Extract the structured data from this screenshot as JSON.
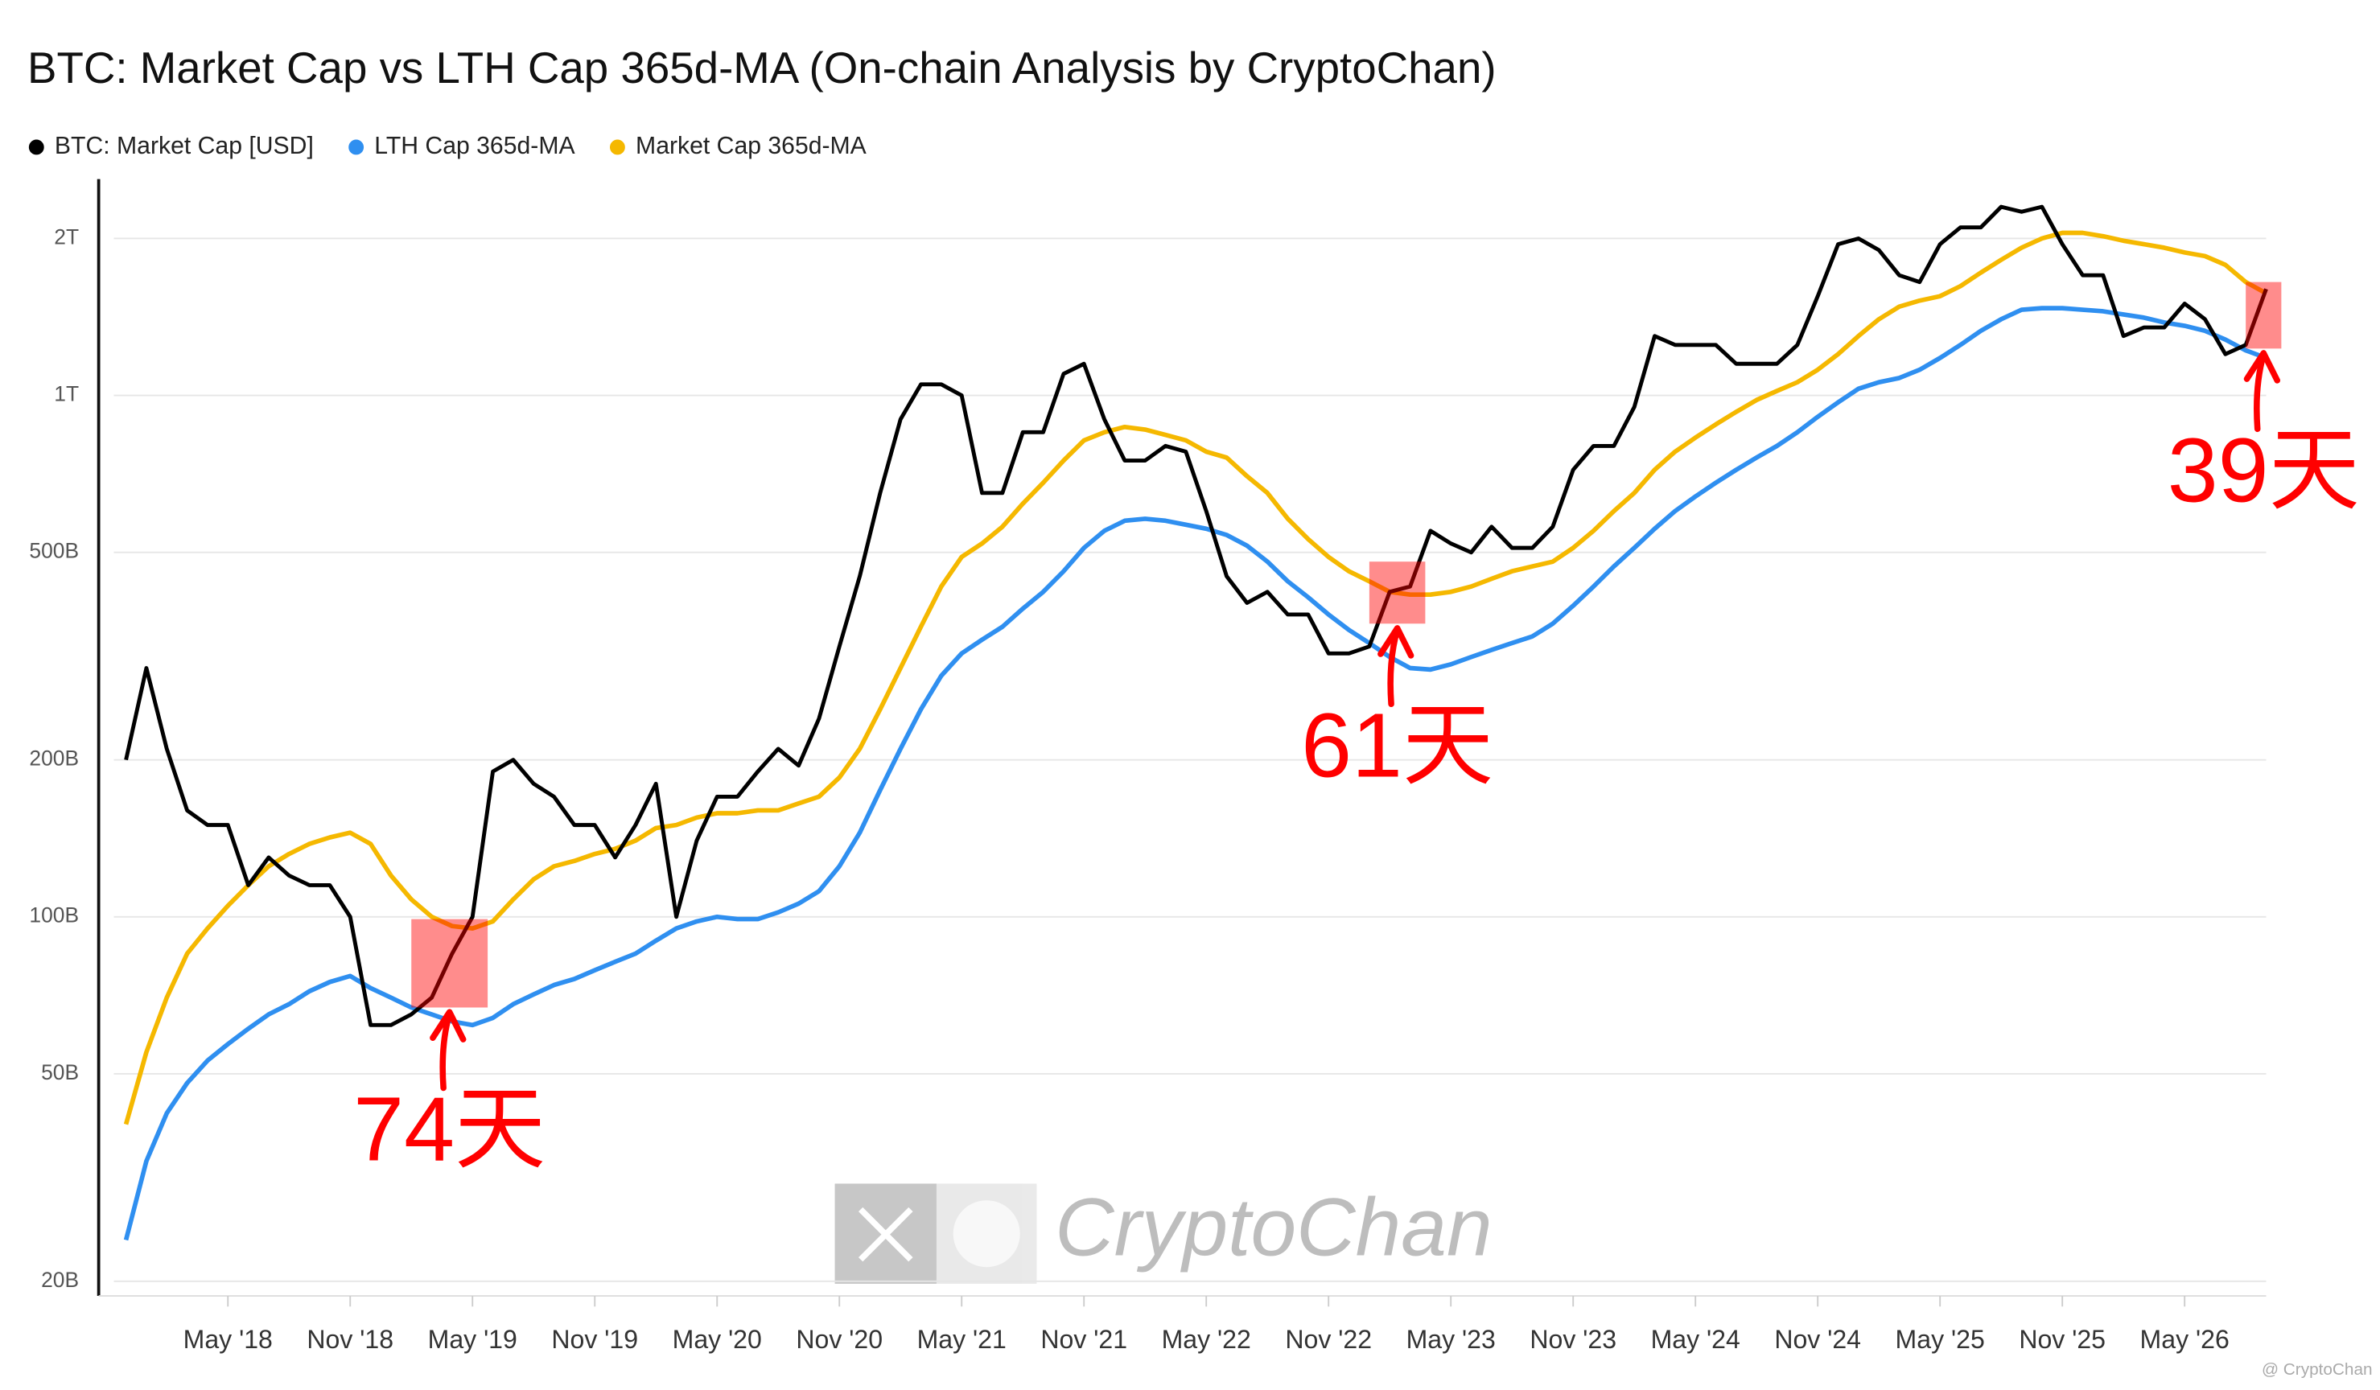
{
  "chart_data": {
    "type": "line",
    "title": "BTC: Market Cap vs LTH Cap 365d-MA (On-chain Analysis by CryptoChan)",
    "log_scale": true,
    "grid": true,
    "legend": "top-left",
    "xlim": [
      "2017-12",
      "2026-09"
    ],
    "ylim": [
      19000000000.0,
      2600000000000.0
    ],
    "yticks": [
      {
        "value": 20000000000.0,
        "label": "20B"
      },
      {
        "value": 50000000000.0,
        "label": "50B"
      },
      {
        "value": 100000000000.0,
        "label": "100B"
      },
      {
        "value": 200000000000.0,
        "label": "200B"
      },
      {
        "value": 500000000000.0,
        "label": "500B"
      },
      {
        "value": 1000000000000.0,
        "label": "1T"
      },
      {
        "value": 2000000000000.0,
        "label": "2T"
      }
    ],
    "xticks": [
      {
        "value": "2018-05",
        "label": "May '18"
      },
      {
        "value": "2018-11",
        "label": "Nov '18"
      },
      {
        "value": "2019-05",
        "label": "May '19"
      },
      {
        "value": "2019-11",
        "label": "Nov '19"
      },
      {
        "value": "2020-05",
        "label": "May '20"
      },
      {
        "value": "2020-11",
        "label": "Nov '20"
      },
      {
        "value": "2021-05",
        "label": "May '21"
      },
      {
        "value": "2021-11",
        "label": "Nov '21"
      },
      {
        "value": "2022-05",
        "label": "May '22"
      },
      {
        "value": "2022-11",
        "label": "Nov '22"
      },
      {
        "value": "2023-05",
        "label": "May '23"
      },
      {
        "value": "2023-11",
        "label": "Nov '23"
      },
      {
        "value": "2024-05",
        "label": "May '24"
      },
      {
        "value": "2024-11",
        "label": "Nov '24"
      },
      {
        "value": "2025-05",
        "label": "May '25"
      },
      {
        "value": "2025-11",
        "label": "Nov '25"
      },
      {
        "value": "2026-05",
        "label": "May '26"
      }
    ],
    "x": [
      "2017-12",
      "2018-01",
      "2018-02",
      "2018-03",
      "2018-04",
      "2018-05",
      "2018-06",
      "2018-07",
      "2018-08",
      "2018-09",
      "2018-10",
      "2018-11",
      "2018-12",
      "2019-01",
      "2019-02",
      "2019-03",
      "2019-04",
      "2019-05",
      "2019-06",
      "2019-07",
      "2019-08",
      "2019-09",
      "2019-10",
      "2019-11",
      "2019-12",
      "2020-01",
      "2020-02",
      "2020-03",
      "2020-04",
      "2020-05",
      "2020-06",
      "2020-07",
      "2020-08",
      "2020-09",
      "2020-10",
      "2020-11",
      "2020-12",
      "2021-01",
      "2021-02",
      "2021-03",
      "2021-04",
      "2021-05",
      "2021-06",
      "2021-07",
      "2021-08",
      "2021-09",
      "2021-10",
      "2021-11",
      "2021-12",
      "2022-01",
      "2022-02",
      "2022-03",
      "2022-04",
      "2022-05",
      "2022-06",
      "2022-07",
      "2022-08",
      "2022-09",
      "2022-10",
      "2022-11",
      "2022-12",
      "2023-01",
      "2023-02",
      "2023-03",
      "2023-04",
      "2023-05",
      "2023-06",
      "2023-07",
      "2023-08",
      "2023-09",
      "2023-10",
      "2023-11",
      "2023-12",
      "2024-01",
      "2024-02",
      "2024-03",
      "2024-04",
      "2024-05",
      "2024-06",
      "2024-07",
      "2024-08",
      "2024-09",
      "2024-10",
      "2024-11",
      "2024-12",
      "2025-01",
      "2025-02",
      "2025-03",
      "2025-04",
      "2025-05",
      "2025-06",
      "2025-07",
      "2025-08",
      "2025-09",
      "2025-10",
      "2025-11",
      "2025-12",
      "2026-01",
      "2026-02",
      "2026-03",
      "2026-04",
      "2026-05",
      "2026-06",
      "2026-07",
      "2026-08",
      "2026-09"
    ],
    "series": [
      {
        "name": "BTC: Market Cap [USD]",
        "color": "#000000",
        "values": [
          200000000000.0,
          300000000000.0,
          210000000000.0,
          160000000000.0,
          150000000000.0,
          150000000000.0,
          115000000000.0,
          130000000000.0,
          120000000000.0,
          115000000000.0,
          115000000000.0,
          100000000000.0,
          62000000000.0,
          62000000000.0,
          65000000000.0,
          70000000000.0,
          85000000000.0,
          100000000000.0,
          190000000000.0,
          200000000000.0,
          180000000000.0,
          170000000000.0,
          150000000000.0,
          150000000000.0,
          130000000000.0,
          150000000000.0,
          180000000000.0,
          100000000000.0,
          140000000000.0,
          170000000000.0,
          170000000000.0,
          190000000000.0,
          210000000000.0,
          195000000000.0,
          240000000000.0,
          330000000000.0,
          450000000000.0,
          650000000000.0,
          900000000000.0,
          1050000000000.0,
          1050000000000.0,
          1000000000000.0,
          650000000000.0,
          650000000000.0,
          850000000000.0,
          850000000000.0,
          1100000000000.0,
          1150000000000.0,
          900000000000.0,
          750000000000.0,
          750000000000.0,
          800000000000.0,
          780000000000.0,
          600000000000.0,
          450000000000.0,
          400000000000.0,
          420000000000.0,
          380000000000.0,
          380000000000.0,
          320000000000.0,
          320000000000.0,
          330000000000.0,
          420000000000.0,
          430000000000.0,
          550000000000.0,
          520000000000.0,
          500000000000.0,
          560000000000.0,
          510000000000.0,
          510000000000.0,
          560000000000.0,
          720000000000.0,
          800000000000.0,
          800000000000.0,
          950000000000.0,
          1300000000000.0,
          1250000000000.0,
          1250000000000.0,
          1250000000000.0,
          1150000000000.0,
          1150000000000.0,
          1150000000000.0,
          1250000000000.0,
          1550000000000.0,
          1950000000000.0,
          2000000000000.0,
          1900000000000.0,
          1700000000000.0,
          1650000000000.0,
          1950000000000.0,
          2100000000000.0,
          2100000000000.0,
          2300000000000.0,
          2250000000000.0,
          2300000000000.0,
          1950000000000.0,
          1700000000000.0,
          1700000000000.0,
          1300000000000.0,
          1350000000000.0,
          1350000000000.0,
          1500000000000.0,
          1400000000000.0,
          1200000000000.0,
          1250000000000.0,
          1600000000000.0
        ]
      },
      {
        "name": "LTH Cap 365d-MA",
        "color": "#2f8ff0",
        "values": [
          24000000000.0,
          34000000000.0,
          42000000000.0,
          48000000000.0,
          53000000000.0,
          57000000000.0,
          61000000000.0,
          65000000000.0,
          68000000000.0,
          72000000000.0,
          75000000000.0,
          77000000000.0,
          73000000000.0,
          70000000000.0,
          67000000000.0,
          65000000000.0,
          63000000000.0,
          62000000000.0,
          64000000000.0,
          68000000000.0,
          71000000000.0,
          74000000000.0,
          76000000000.0,
          79000000000.0,
          82000000000.0,
          85000000000.0,
          90000000000.0,
          95000000000.0,
          98000000000.0,
          100000000000.0,
          99000000000.0,
          99000000000.0,
          102000000000.0,
          106000000000.0,
          112000000000.0,
          125000000000.0,
          145000000000.0,
          175000000000.0,
          210000000000.0,
          250000000000.0,
          290000000000.0,
          320000000000.0,
          340000000000.0,
          360000000000.0,
          390000000000.0,
          420000000000.0,
          460000000000.0,
          510000000000.0,
          550000000000.0,
          575000000000.0,
          580000000000.0,
          575000000000.0,
          565000000000.0,
          555000000000.0,
          540000000000.0,
          515000000000.0,
          480000000000.0,
          440000000000.0,
          410000000000.0,
          380000000000.0,
          355000000000.0,
          335000000000.0,
          315000000000.0,
          300000000000.0,
          298000000000.0,
          305000000000.0,
          315000000000.0,
          325000000000.0,
          335000000000.0,
          345000000000.0,
          365000000000.0,
          395000000000.0,
          430000000000.0,
          470000000000.0,
          510000000000.0,
          555000000000.0,
          600000000000.0,
          640000000000.0,
          680000000000.0,
          720000000000.0,
          760000000000.0,
          800000000000.0,
          850000000000.0,
          910000000000.0,
          970000000000.0,
          1030000000000.0,
          1060000000000.0,
          1080000000000.0,
          1120000000000.0,
          1180000000000.0,
          1250000000000.0,
          1330000000000.0,
          1400000000000.0,
          1460000000000.0,
          1470000000000.0,
          1470000000000.0,
          1460000000000.0,
          1450000000000.0,
          1430000000000.0,
          1410000000000.0,
          1380000000000.0,
          1360000000000.0,
          1330000000000.0,
          1280000000000.0,
          1220000000000.0,
          1180000000000.0
        ]
      },
      {
        "name": "Market Cap 365d-MA",
        "color": "#f5b800",
        "values": [
          40000000000.0,
          55000000000.0,
          70000000000.0,
          85000000000.0,
          95000000000.0,
          105000000000.0,
          115000000000.0,
          125000000000.0,
          132000000000.0,
          138000000000.0,
          142000000000.0,
          145000000000.0,
          138000000000.0,
          120000000000.0,
          108000000000.0,
          100000000000.0,
          96000000000.0,
          95000000000.0,
          98000000000.0,
          108000000000.0,
          118000000000.0,
          125000000000.0,
          128000000000.0,
          132000000000.0,
          135000000000.0,
          140000000000.0,
          148000000000.0,
          150000000000.0,
          155000000000.0,
          158000000000.0,
          158000000000.0,
          160000000000.0,
          160000000000.0,
          165000000000.0,
          170000000000.0,
          185000000000.0,
          210000000000.0,
          250000000000.0,
          300000000000.0,
          360000000000.0,
          430000000000.0,
          490000000000.0,
          520000000000.0,
          560000000000.0,
          620000000000.0,
          680000000000.0,
          750000000000.0,
          820000000000.0,
          850000000000.0,
          870000000000.0,
          860000000000.0,
          840000000000.0,
          820000000000.0,
          780000000000.0,
          760000000000.0,
          700000000000.0,
          650000000000.0,
          580000000000.0,
          530000000000.0,
          490000000000.0,
          460000000000.0,
          440000000000.0,
          420000000000.0,
          415000000000.0,
          415000000000.0,
          420000000000.0,
          430000000000.0,
          445000000000.0,
          460000000000.0,
          470000000000.0,
          480000000000.0,
          510000000000.0,
          550000000000.0,
          600000000000.0,
          650000000000.0,
          720000000000.0,
          780000000000.0,
          830000000000.0,
          880000000000.0,
          930000000000.0,
          980000000000.0,
          1020000000000.0,
          1060000000000.0,
          1120000000000.0,
          1200000000000.0,
          1300000000000.0,
          1400000000000.0,
          1480000000000.0,
          1520000000000.0,
          1550000000000.0,
          1620000000000.0,
          1720000000000.0,
          1820000000000.0,
          1920000000000.0,
          2000000000000.0,
          2050000000000.0,
          2050000000000.0,
          2020000000000.0,
          1980000000000.0,
          1950000000000.0,
          1920000000000.0,
          1880000000000.0,
          1850000000000.0,
          1780000000000.0,
          1650000000000.0,
          1570000000000.0
        ]
      }
    ],
    "annotations": [
      {
        "text": "74天",
        "x": [
          "2019-02",
          "2019-05"
        ],
        "y": [
          67000000000.0,
          99000000000.0
        ],
        "color": "#ff0000"
      },
      {
        "text": "61天",
        "x": [
          "2023-01",
          "2023-03"
        ],
        "y": [
          365000000000.0,
          480000000000.0
        ],
        "color": "#ff0000"
      },
      {
        "text": "39天",
        "x": [
          "2026-08",
          "2026-09"
        ],
        "y": [
          1230000000000.0,
          1650000000000.0
        ],
        "color": "#ff0000"
      }
    ],
    "watermark": "CryptoChan",
    "credit": "@ CryptoChan"
  }
}
